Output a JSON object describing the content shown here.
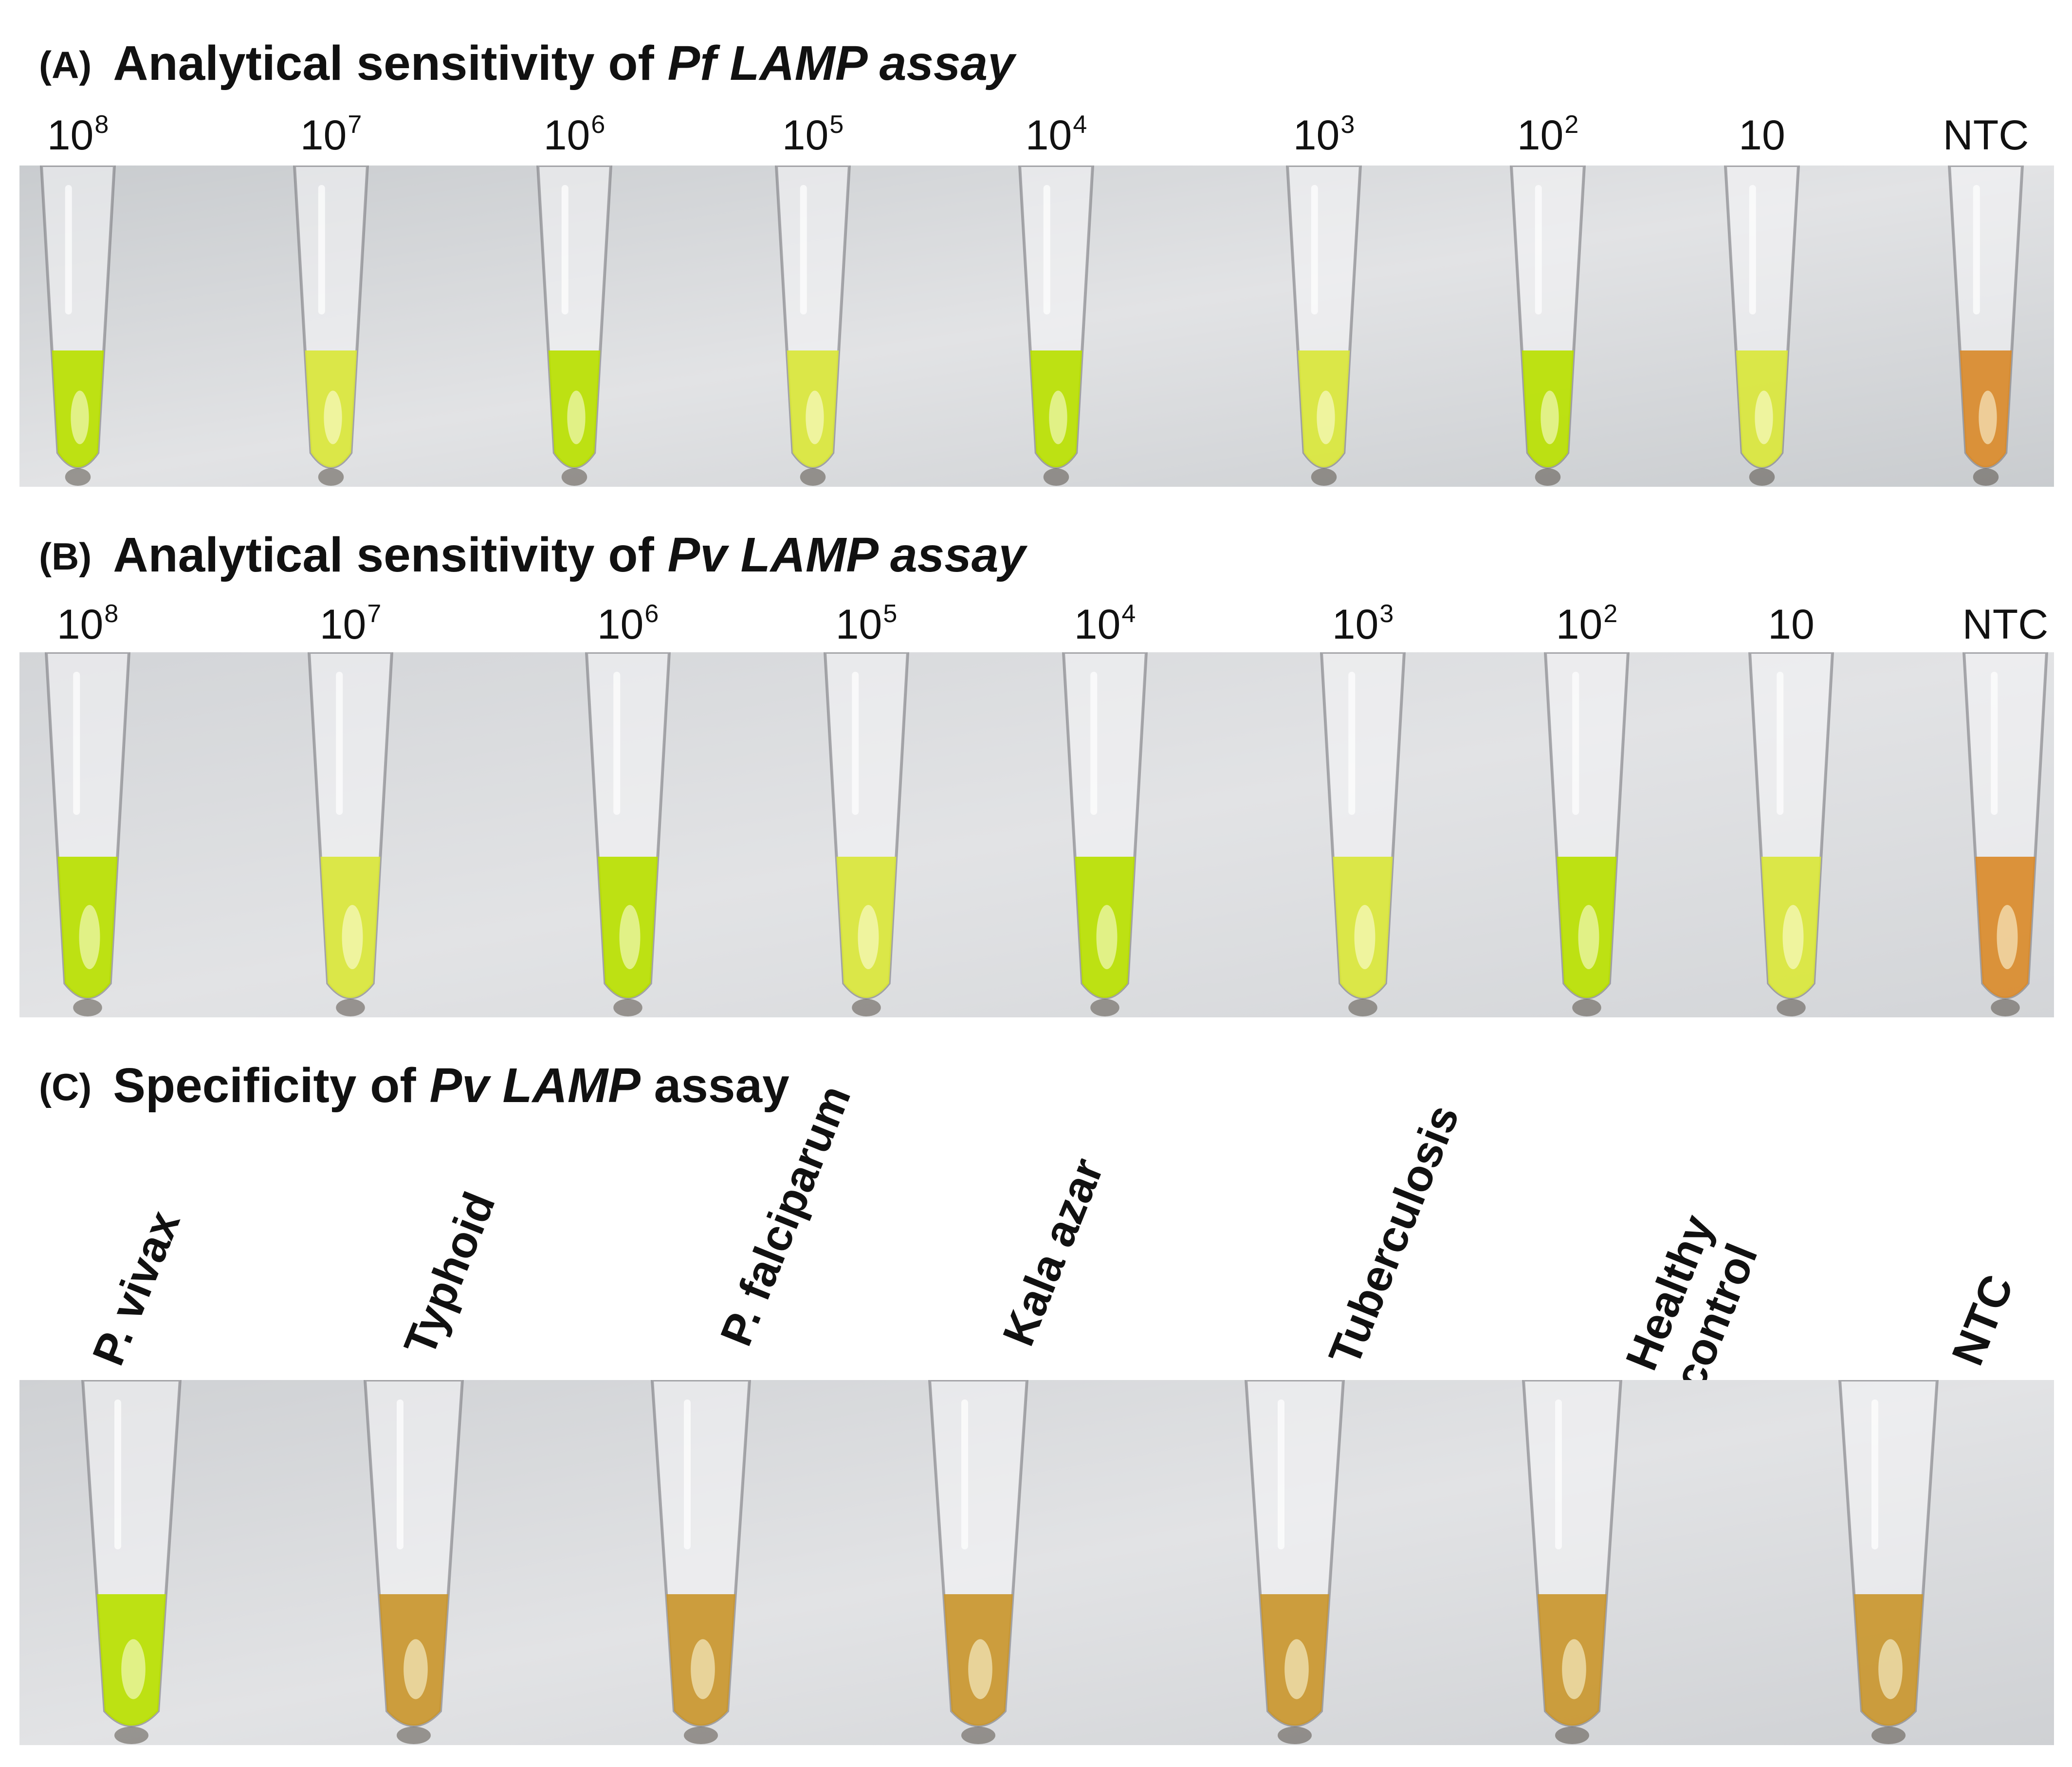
{
  "colors": {
    "positive_green": "#b8e000",
    "positive_yellow": "#d9e63a",
    "negative_orange": "#d98a2a",
    "negative_amber": "#c9962e",
    "background_gray_a": "#c9cccf",
    "background_gray_b": "#d3d5d8",
    "background_gray_c": "#cfd1d4"
  },
  "panels": [
    {
      "tag": "(A)",
      "title_prefix": "Analytical sensitivity of ",
      "title_italic": "Pf LAMP assay",
      "title_suffix": "",
      "labels": [
        {
          "base": "10",
          "exp": "8"
        },
        {
          "base": "10",
          "exp": "7"
        },
        {
          "base": "10",
          "exp": "6"
        },
        {
          "base": "10",
          "exp": "5"
        },
        {
          "base": "10",
          "exp": "4"
        },
        {
          "base": "10",
          "exp": "3"
        },
        {
          "base": "10",
          "exp": "2"
        },
        {
          "base": "10",
          "exp": ""
        },
        {
          "base": "NTC",
          "exp": ""
        }
      ],
      "tube_results": [
        "positive",
        "positive",
        "positive",
        "positive",
        "positive",
        "positive",
        "positive",
        "positive",
        "negative"
      ]
    },
    {
      "tag": "(B)",
      "title_prefix": "Analytical sensitivity of ",
      "title_italic": "Pv LAMP assay",
      "title_suffix": "",
      "labels": [
        {
          "base": "10",
          "exp": "8"
        },
        {
          "base": "10",
          "exp": "7"
        },
        {
          "base": "10",
          "exp": "6"
        },
        {
          "base": "10",
          "exp": "5"
        },
        {
          "base": "10",
          "exp": "4"
        },
        {
          "base": "10",
          "exp": "3"
        },
        {
          "base": "10",
          "exp": "2"
        },
        {
          "base": "10",
          "exp": ""
        },
        {
          "base": "NTC",
          "exp": ""
        }
      ],
      "tube_results": [
        "positive",
        "positive",
        "positive",
        "positive",
        "positive",
        "positive",
        "positive",
        "positive",
        "negative"
      ]
    },
    {
      "tag": "(C)",
      "title_prefix": "Specificity of ",
      "title_italic": "Pv LAMP",
      "title_suffix": " assay",
      "labels": [
        {
          "lines": [
            "P. vivax"
          ]
        },
        {
          "lines": [
            "Typhoid"
          ]
        },
        {
          "lines": [
            "P. falciparum"
          ]
        },
        {
          "lines": [
            "Kala azar"
          ]
        },
        {
          "lines": [
            "Tuberculosis"
          ]
        },
        {
          "lines": [
            "Healthy",
            "control"
          ]
        },
        {
          "lines": [
            "NTC"
          ]
        }
      ],
      "tube_results": [
        "positive",
        "negative",
        "negative",
        "negative",
        "negative",
        "negative",
        "negative"
      ]
    }
  ]
}
